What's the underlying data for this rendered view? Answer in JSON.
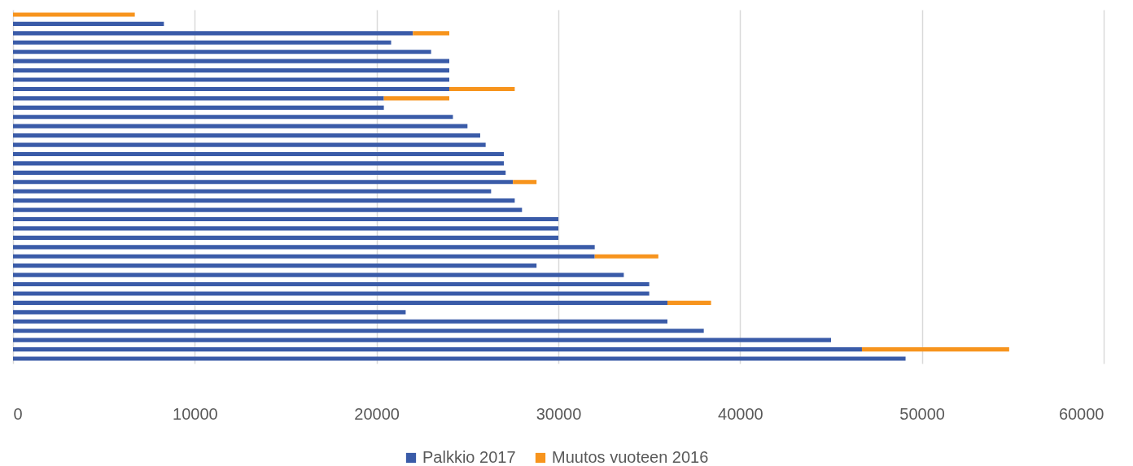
{
  "chart_data": {
    "type": "bar",
    "orientation": "horizontal",
    "stacked": true,
    "categories": [
      null,
      null,
      null,
      null,
      null,
      null,
      null,
      null,
      null,
      null,
      null,
      null,
      null,
      null,
      null,
      null,
      null,
      null,
      null,
      null,
      null,
      null,
      null,
      null,
      null,
      null,
      null,
      null,
      null,
      null,
      null,
      null,
      null,
      null,
      null,
      null,
      null,
      null
    ],
    "series": [
      {
        "name": "Palkkio 2017",
        "color": "#3a5ba8",
        "values": [
          0,
          8300,
          22000,
          20800,
          23000,
          24000,
          24000,
          24000,
          24000,
          20400,
          20400,
          24200,
          25000,
          25700,
          26000,
          27000,
          27000,
          27100,
          27500,
          26300,
          27600,
          28000,
          30000,
          30000,
          30000,
          32000,
          32000,
          28800,
          33600,
          35000,
          35000,
          36000,
          21600,
          36000,
          38000,
          45000,
          46700,
          49100
        ]
      },
      {
        "name": "Muutos vuoteen 2016",
        "color": "#f7941d",
        "values": [
          6700,
          null,
          2000,
          null,
          null,
          null,
          null,
          null,
          3600,
          3600,
          null,
          null,
          null,
          null,
          null,
          null,
          null,
          null,
          1300,
          null,
          null,
          null,
          null,
          null,
          null,
          null,
          3500,
          null,
          null,
          null,
          null,
          2400,
          null,
          null,
          null,
          null,
          8100,
          null
        ]
      }
    ],
    "xlim": [
      0,
      60000
    ],
    "xticks": [
      0,
      10000,
      20000,
      30000,
      40000,
      50000,
      60000
    ],
    "grid": "x",
    "legend": "bottom",
    "tick_labels": "x"
  }
}
